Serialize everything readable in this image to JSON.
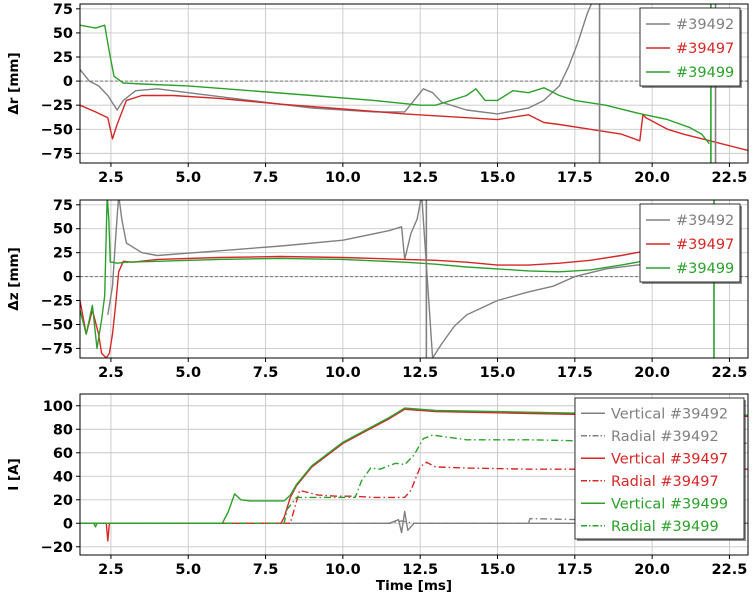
{
  "chart_data": [
    {
      "type": "line",
      "ylabel": "Δr [mm]",
      "xlabel": "",
      "xlim": [
        1.5,
        23.1
      ],
      "ylim": [
        -85,
        80
      ],
      "xticks": [
        2.5,
        5.0,
        7.5,
        10.0,
        12.5,
        15.0,
        17.5,
        20.0,
        22.5
      ],
      "xtick_labels": [
        "2.5",
        "5.0",
        "7.5",
        "10.0",
        "12.5",
        "15.0",
        "17.5",
        "20.0",
        "22.5"
      ],
      "yticks": [
        -75,
        -50,
        -25,
        0,
        25,
        50,
        75
      ],
      "ytick_labels": [
        "−75",
        "−50",
        "−25",
        "0",
        "25",
        "50",
        "75"
      ],
      "grid": true,
      "zero_line": true,
      "legend": "top-right",
      "vlines": [
        {
          "x": 18.3,
          "color": "#808080"
        },
        {
          "x": 21.9,
          "color": "#2ca02c"
        },
        {
          "x": 22.05,
          "color": "#808080"
        }
      ],
      "series": [
        {
          "name": "#39492",
          "color": "#808080",
          "x": [
            1.5,
            1.8,
            2.1,
            2.4,
            2.7,
            2.9,
            3.3,
            4.0,
            5.0,
            7.0,
            9.0,
            11.0,
            12.0,
            12.3,
            12.6,
            12.9,
            13.2,
            14.0,
            15.0,
            16.0,
            16.5,
            17.0,
            17.3,
            17.6,
            17.9,
            18.1
          ],
          "y": [
            12,
            0,
            -5,
            -15,
            -30,
            -20,
            -10,
            -8,
            -12,
            -20,
            -28,
            -32,
            -32,
            -20,
            -8,
            -12,
            -22,
            -30,
            -34,
            -28,
            -20,
            -5,
            15,
            40,
            70,
            85
          ]
        },
        {
          "name": "#39497",
          "color": "#d62728",
          "x": [
            1.5,
            2.0,
            2.4,
            2.55,
            2.7,
            3.0,
            3.5,
            4.5,
            6.0,
            8.0,
            10.0,
            12.0,
            13.0,
            14.0,
            15.0,
            16.0,
            16.5,
            17.0,
            18.0,
            19.0,
            19.6,
            19.7,
            19.8,
            20.5,
            21.0,
            22.0,
            23.1
          ],
          "y": [
            -25,
            -32,
            -38,
            -60,
            -45,
            -20,
            -15,
            -15,
            -18,
            -24,
            -29,
            -34,
            -36,
            -38,
            -40,
            -35,
            -43,
            -45,
            -50,
            -55,
            -62,
            -35,
            -38,
            -50,
            -55,
            -63,
            -72
          ]
        },
        {
          "name": "#39499",
          "color": "#2ca02c",
          "x": [
            1.5,
            2.0,
            2.3,
            2.45,
            2.6,
            2.9,
            3.5,
            5.0,
            7.0,
            9.0,
            11.0,
            12.5,
            13.0,
            13.5,
            14.0,
            14.3,
            14.6,
            15.0,
            15.5,
            16.0,
            16.5,
            17.0,
            17.5,
            18.5,
            19.5,
            20.5,
            21.2,
            21.6,
            21.85
          ],
          "y": [
            58,
            55,
            58,
            30,
            5,
            -2,
            -3,
            -5,
            -10,
            -15,
            -20,
            -25,
            -25,
            -20,
            -15,
            -8,
            -20,
            -20,
            -10,
            -12,
            -7,
            -15,
            -20,
            -25,
            -33,
            -40,
            -48,
            -55,
            -65
          ]
        }
      ]
    },
    {
      "type": "line",
      "ylabel": "Δz [mm]",
      "xlabel": "",
      "xlim": [
        1.5,
        23.1
      ],
      "ylim": [
        -85,
        80
      ],
      "xticks": [
        2.5,
        5.0,
        7.5,
        10.0,
        12.5,
        15.0,
        17.5,
        20.0,
        22.5
      ],
      "xtick_labels": [
        "2.5",
        "5.0",
        "7.5",
        "10.0",
        "12.5",
        "15.0",
        "17.5",
        "20.0",
        "22.5"
      ],
      "yticks": [
        -75,
        -50,
        -25,
        0,
        25,
        50,
        75
      ],
      "ytick_labels": [
        "−75",
        "−50",
        "−25",
        "0",
        "25",
        "50",
        "75"
      ],
      "grid": true,
      "zero_line": true,
      "legend": "top-right",
      "vlines": [
        {
          "x": 12.7,
          "color": "#808080"
        },
        {
          "x": 22.0,
          "color": "#2ca02c"
        }
      ],
      "series": [
        {
          "name": "#39492",
          "color": "#808080",
          "x": [
            2.4,
            2.55,
            2.65,
            2.75,
            2.85,
            3.0,
            3.5,
            4.0,
            6.0,
            8.0,
            10.0,
            11.5,
            11.9,
            12.0,
            12.2,
            12.4,
            12.55,
            12.9,
            13.2,
            13.6,
            14.0,
            15.0,
            16.0,
            16.8,
            17.5,
            18.5,
            19.5,
            20.5,
            21.5,
            22.0
          ],
          "y": [
            -40,
            -10,
            40,
            85,
            60,
            35,
            25,
            22,
            27,
            32,
            38,
            48,
            52,
            18,
            45,
            60,
            85,
            -85,
            -70,
            -52,
            -40,
            -25,
            -16,
            -10,
            0,
            8,
            12,
            15,
            17,
            19
          ]
        },
        {
          "name": "#39497",
          "color": "#d62728",
          "x": [
            1.5,
            1.7,
            1.9,
            2.1,
            2.2,
            2.35,
            2.45,
            2.55,
            2.65,
            2.75,
            2.9,
            3.2,
            4.0,
            6.0,
            8.0,
            10.0,
            12.0,
            13.0,
            14.0,
            15.0,
            16.0,
            17.0,
            18.0,
            19.0,
            20.0,
            21.0,
            22.0,
            22.1
          ],
          "y": [
            -25,
            -60,
            -35,
            -60,
            -80,
            -85,
            -80,
            -60,
            -30,
            5,
            16,
            15,
            18,
            20,
            21,
            20,
            18,
            17,
            15,
            12,
            12,
            14,
            17,
            22,
            28,
            35,
            45,
            50
          ]
        },
        {
          "name": "#39499",
          "color": "#2ca02c",
          "x": [
            1.5,
            1.7,
            1.9,
            2.05,
            2.2,
            2.3,
            2.38,
            2.43,
            2.48,
            2.55,
            2.7,
            3.0,
            4.0,
            6.0,
            8.0,
            10.0,
            12.0,
            13.0,
            14.0,
            15.0,
            16.0,
            17.0,
            18.0,
            19.0,
            20.0,
            21.0,
            21.9
          ],
          "y": [
            -35,
            -60,
            -30,
            -75,
            -45,
            -20,
            85,
            60,
            15,
            15,
            14,
            15,
            16,
            18,
            19,
            18,
            15,
            13,
            10,
            8,
            6,
            5,
            7,
            12,
            18,
            25,
            33
          ]
        }
      ]
    },
    {
      "type": "line",
      "ylabel": "I [A]",
      "xlabel": "Time [ms]",
      "xlim": [
        1.5,
        23.1
      ],
      "ylim": [
        -27,
        110
      ],
      "xticks": [
        2.5,
        5.0,
        7.5,
        10.0,
        12.5,
        15.0,
        17.5,
        20.0,
        22.5
      ],
      "xtick_labels": [
        "2.5",
        "5.0",
        "7.5",
        "10.0",
        "12.5",
        "15.0",
        "17.5",
        "20.0",
        "22.5"
      ],
      "yticks": [
        -20,
        0,
        20,
        40,
        60,
        80,
        100
      ],
      "ytick_labels": [
        "−20",
        "0",
        "20",
        "40",
        "60",
        "80",
        "100"
      ],
      "grid": true,
      "zero_line": false,
      "legend": "top-right",
      "vlines": [],
      "series": [
        {
          "name": "Vertical #39492",
          "color": "#808080",
          "dash": "solid",
          "x": [
            1.5,
            2.0,
            4.0,
            6.0,
            8.0,
            10.0,
            11.5,
            11.8,
            11.9,
            12.0,
            12.1,
            12.3,
            14.0,
            16.0,
            18.0,
            20.0,
            22.0,
            23.1
          ],
          "y": [
            0,
            0,
            0,
            0,
            0,
            0,
            0,
            3,
            -8,
            10,
            -6,
            0,
            0,
            0,
            0,
            0,
            0,
            0
          ]
        },
        {
          "name": "Radial #39492",
          "color": "#808080",
          "dash": "dashdot",
          "x": [
            1.5,
            10.0,
            11.5,
            11.9,
            12.3,
            16.0,
            16.05,
            23.1
          ],
          "y": [
            0,
            0,
            0,
            2,
            0,
            0,
            4,
            0
          ]
        },
        {
          "name": "Vertical #39497",
          "color": "#d62728",
          "dash": "solid",
          "x": [
            1.5,
            2.35,
            2.4,
            2.45,
            2.5,
            8.0,
            8.1,
            8.3,
            8.5,
            9.0,
            10.0,
            11.0,
            11.5,
            12.0,
            13.0,
            15.0,
            17.0,
            19.0,
            21.0,
            22.0,
            23.1
          ],
          "y": [
            0,
            0,
            -15,
            0,
            0,
            0,
            5,
            22,
            32,
            48,
            68,
            82,
            89,
            97,
            95,
            94,
            93,
            92,
            92,
            91,
            91
          ]
        },
        {
          "name": "Radial #39497",
          "color": "#d62728",
          "dash": "dashdot",
          "x": [
            1.5,
            8.3,
            8.6,
            8.9,
            9.2,
            9.8,
            10.3,
            11.0,
            12.0,
            12.2,
            12.5,
            12.7,
            13.0,
            14.0,
            16.0,
            18.0,
            20.0,
            22.0,
            23.1
          ],
          "y": [
            0,
            0,
            28,
            26,
            24,
            23,
            23,
            22,
            22,
            28,
            48,
            52,
            48,
            47,
            46,
            46,
            46,
            46,
            46
          ]
        },
        {
          "name": "Vertical #39499",
          "color": "#2ca02c",
          "dash": "solid",
          "x": [
            1.5,
            1.95,
            2.0,
            2.05,
            6.1,
            6.3,
            6.5,
            6.7,
            7.0,
            8.1,
            8.3,
            8.5,
            9.0,
            10.0,
            11.0,
            11.5,
            12.0,
            13.0,
            15.0,
            17.0,
            19.0,
            21.0,
            22.0,
            23.1
          ],
          "y": [
            0,
            0,
            -3,
            0,
            0,
            10,
            25,
            20,
            19,
            19,
            24,
            33,
            49,
            69,
            83,
            90,
            98,
            96,
            95,
            94,
            93,
            93,
            92,
            92
          ]
        },
        {
          "name": "Radial #39499",
          "color": "#2ca02c",
          "dash": "dashdot",
          "x": [
            1.5,
            8.1,
            8.2,
            8.5,
            9.0,
            9.8,
            10.4,
            10.6,
            10.9,
            11.2,
            11.7,
            12.0,
            12.3,
            12.6,
            12.9,
            14.0,
            16.0,
            18.0,
            20.0,
            22.0,
            23.1
          ],
          "y": [
            0,
            0,
            12,
            22,
            22,
            22,
            22,
            36,
            47,
            46,
            51,
            50,
            58,
            72,
            75,
            71,
            71,
            70,
            70,
            69,
            68
          ]
        }
      ]
    }
  ]
}
